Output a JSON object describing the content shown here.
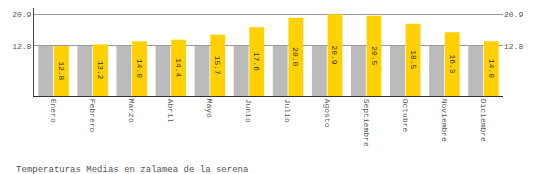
{
  "chart_data": {
    "type": "bar",
    "title": "Temperaturas Medias en zalamea de la serena",
    "categories": [
      "Enero",
      "Febrero",
      "Marzo",
      "Abril",
      "Mayo",
      "Junio",
      "Julio",
      "Agosto",
      "Septiembre",
      "Octubre",
      "Noviembre",
      "Diciembre"
    ],
    "series": [
      {
        "color": "#BBBBBB",
        "data_labels": false,
        "values": [
          12.8,
          12.8,
          12.8,
          12.8,
          12.8,
          12.8,
          12.8,
          12.8,
          12.8,
          12.8,
          12.8,
          12.8
        ]
      },
      {
        "color": "#FFD100",
        "data_labels": true,
        "values": [
          12.8,
          13.2,
          14.0,
          14.4,
          15.7,
          17.6,
          20.0,
          20.9,
          20.5,
          18.5,
          16.3,
          14.0
        ],
        "value_labels": [
          "12.8",
          "13.2",
          "14.0",
          "14.4",
          "15.7",
          "17.6",
          "20.0",
          "20.9",
          "20.5",
          "18.5",
          "16.3",
          "14.0"
        ]
      }
    ],
    "ylim": [
      0,
      22.5
    ],
    "yticks": [
      12.8,
      20.9
    ],
    "y2lim": [
      0,
      22.5
    ],
    "y2ticks": [
      12.8,
      20.9
    ],
    "grid": true
  }
}
